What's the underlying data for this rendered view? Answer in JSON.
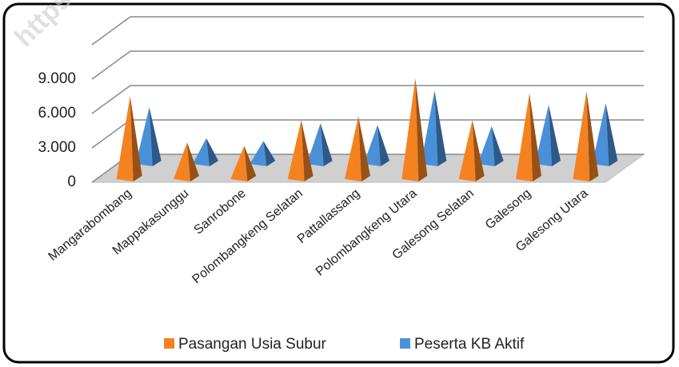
{
  "watermark": "https",
  "chart_data": {
    "type": "pyramid3d",
    "categories": [
      "Mangarabombang",
      "Mappakasunggu",
      "Sanrobone",
      "Polombangkeng Selatan",
      "Pattallassang",
      "Polombangkeng Utara",
      "Galesong Selatan",
      "Galesong",
      "Galesong Utara"
    ],
    "series": [
      {
        "name": "Pasangan Usia Subur",
        "color": "#f58220",
        "values": [
          7250,
          3200,
          2900,
          5150,
          5500,
          8800,
          5150,
          7500,
          7650
        ]
      },
      {
        "name": "Peserta KB Aktif",
        "color": "#4a90d9",
        "values": [
          4950,
          2250,
          2000,
          3550,
          3400,
          6400,
          3300,
          5150,
          5300
        ]
      }
    ],
    "ylim": [
      0,
      12000
    ],
    "yticks": [
      0,
      {
        "value": 3000,
        "label": "3.000"
      },
      {
        "value": 6000,
        "label": "6.000"
      },
      {
        "value": 9000,
        "label": "9.000"
      }
    ],
    "grid": true,
    "legend": "bottom"
  }
}
